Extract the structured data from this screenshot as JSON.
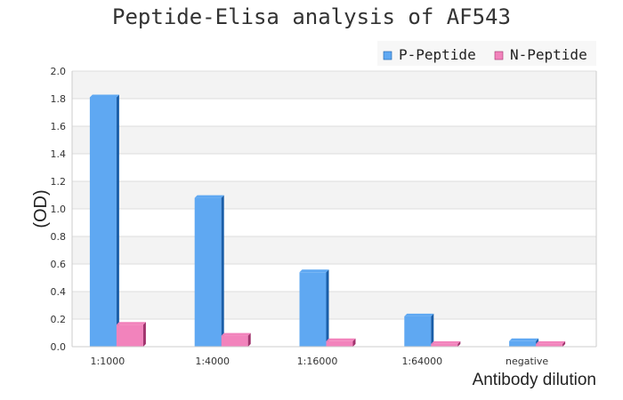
{
  "chart_data": {
    "type": "bar",
    "title": "Peptide-Elisa analysis of AF543",
    "xlabel": "Antibody dilution",
    "ylabel": "(OD)",
    "categories": [
      "1:1000",
      "1:4000",
      "1:16000",
      "1:64000",
      "negative"
    ],
    "series": [
      {
        "name": "P-Peptide",
        "values": [
          1.81,
          1.08,
          0.54,
          0.22,
          0.04
        ],
        "color": "#5fa8f2",
        "side_color": "#1a5ea8"
      },
      {
        "name": "N-Peptide",
        "values": [
          0.16,
          0.08,
          0.04,
          0.02,
          0.02
        ],
        "color": "#f283bc",
        "side_color": "#a0336d"
      }
    ],
    "ylim": [
      0,
      2.0
    ],
    "yticks": [
      "0.0",
      "0.2",
      "0.4",
      "0.6",
      "0.8",
      "1.0",
      "1.2",
      "1.4",
      "1.6",
      "1.8",
      "2.0"
    ],
    "grid": true,
    "legend": "top-right",
    "style": "3d-bar"
  }
}
